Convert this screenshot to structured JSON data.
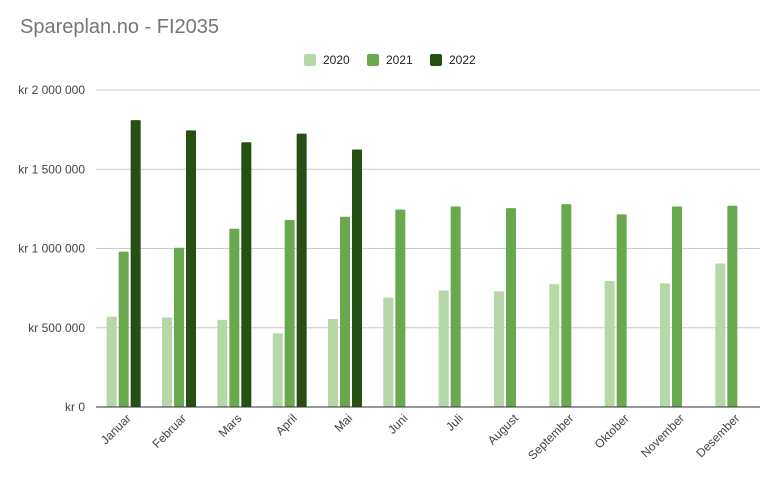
{
  "chart_data": {
    "type": "bar",
    "title": "Spareplan.no - FI2035",
    "xlabel": "",
    "ylabel": "",
    "ylim": [
      0,
      2000000
    ],
    "yticks": [
      0,
      500000,
      1000000,
      1500000,
      2000000
    ],
    "ytick_labels": [
      "kr    0",
      "kr  500 000",
      "kr 1 000 000",
      "kr 1 500 000",
      "kr 2 000 000"
    ],
    "grid": true,
    "legend_position": "top",
    "categories": [
      "Januar",
      "Februar",
      "Mars",
      "April",
      "Mai",
      "Juni",
      "Juli",
      "August",
      "September",
      "Oktober",
      "November",
      "Desember"
    ],
    "series": [
      {
        "name": "2020",
        "color": "#b6d7a8",
        "values": [
          570000,
          565000,
          550000,
          465000,
          555000,
          690000,
          735000,
          730000,
          775000,
          795000,
          780000,
          905000
        ]
      },
      {
        "name": "2021",
        "color": "#6aa84f",
        "values": [
          980000,
          1005000,
          1125000,
          1180000,
          1200000,
          1245000,
          1265000,
          1255000,
          1280000,
          1215000,
          1265000,
          1270000
        ]
      },
      {
        "name": "2022",
        "color": "#274e13",
        "values": [
          1810000,
          1745000,
          1670000,
          1725000,
          1625000,
          null,
          null,
          null,
          null,
          null,
          null,
          null
        ]
      }
    ]
  }
}
